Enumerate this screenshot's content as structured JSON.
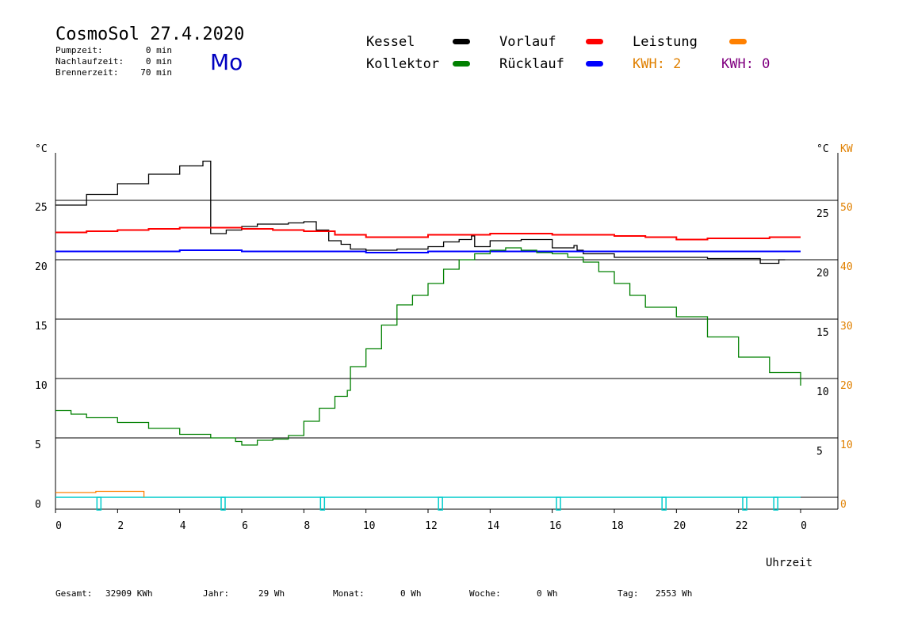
{
  "header": {
    "title": "CosmoSol 27.4.2020",
    "weekday": "Mo",
    "info_rows": [
      {
        "label": "Pumpzeit:",
        "value": "0 min"
      },
      {
        "label": "Nachlaufzeit:",
        "value": "0 min"
      },
      {
        "label": "Brennerzeit:",
        "value": "70 min"
      }
    ]
  },
  "legend": {
    "items": [
      {
        "label": "Kessel",
        "color": "#000000"
      },
      {
        "label": "Vorlauf",
        "color": "#ff0000"
      },
      {
        "label": "Leistung",
        "color": "#ff8000"
      },
      {
        "label": "Kollektor",
        "color": "#008000"
      },
      {
        "label": "Rücklauf",
        "color": "#0000ff"
      }
    ],
    "kwh_orange": "KWH: 2",
    "kwh_purple": "KWH: 0",
    "kwh_orange_color": "#e08000",
    "kwh_purple_color": "#800080"
  },
  "footer": {
    "items": [
      {
        "label": "Gesamt:",
        "value": "32909 KWh"
      },
      {
        "label": "Jahr:",
        "value": "29 Wh"
      },
      {
        "label": "Monat:",
        "value": "0 Wh"
      },
      {
        "label": "Woche:",
        "value": "0 Wh"
      },
      {
        "label": "Tag:",
        "value": "2553 Wh"
      }
    ]
  },
  "chart_data": {
    "type": "line",
    "xlabel": "Uhrzeit",
    "ylabel_left": "°C",
    "ylabel_right": "°C",
    "ylabel_right2": "KW",
    "x_ticks": [
      "0",
      "2",
      "4",
      "6",
      "8",
      "10",
      "12",
      "14",
      "16",
      "18",
      "20",
      "22",
      "0"
    ],
    "y_left_ticks": [
      "0",
      "5",
      "10",
      "15",
      "20",
      "25"
    ],
    "y_right_ticks": [
      "5",
      "10",
      "15",
      "20",
      "25"
    ],
    "y_right_kw_ticks": [
      "0",
      "10",
      "20",
      "30",
      "40",
      "50"
    ],
    "xlim": [
      0,
      24
    ],
    "ylim": [
      -1,
      29
    ],
    "grid": true,
    "series": [
      {
        "name": "Kessel",
        "color": "#000000",
        "points": [
          [
            0,
            24.6
          ],
          [
            1,
            25.5
          ],
          [
            2,
            26.4
          ],
          [
            3,
            27.2
          ],
          [
            4,
            27.9
          ],
          [
            4.75,
            28.3
          ],
          [
            4.8,
            28.3
          ],
          [
            5,
            22.2
          ],
          [
            5.5,
            22.5
          ],
          [
            6,
            22.8
          ],
          [
            6.5,
            23.0
          ],
          [
            7,
            23.0
          ],
          [
            7.5,
            23.1
          ],
          [
            8,
            23.2
          ],
          [
            8.4,
            22.5
          ],
          [
            8.8,
            21.6
          ],
          [
            9.2,
            21.3
          ],
          [
            9.5,
            20.9
          ],
          [
            10,
            20.8
          ],
          [
            11,
            20.9
          ],
          [
            12,
            21.1
          ],
          [
            12.5,
            21.5
          ],
          [
            13,
            21.7
          ],
          [
            13.4,
            22.0
          ],
          [
            13.5,
            21.1
          ],
          [
            14,
            21.6
          ],
          [
            15,
            21.7
          ],
          [
            16,
            21.0
          ],
          [
            16.7,
            21.2
          ],
          [
            16.8,
            20.8
          ],
          [
            17,
            20.5
          ],
          [
            18,
            20.2
          ],
          [
            19,
            20.2
          ],
          [
            20,
            20.2
          ],
          [
            21,
            20.1
          ],
          [
            22,
            20.1
          ],
          [
            22.7,
            19.7
          ],
          [
            23.3,
            20.0
          ],
          [
            23.5,
            20.0
          ]
        ]
      },
      {
        "name": "Vorlauf",
        "color": "#ff0000",
        "points": [
          [
            0,
            22.3
          ],
          [
            1,
            22.4
          ],
          [
            2,
            22.5
          ],
          [
            3,
            22.6
          ],
          [
            4,
            22.7
          ],
          [
            5,
            22.7
          ],
          [
            6,
            22.6
          ],
          [
            7,
            22.5
          ],
          [
            8,
            22.4
          ],
          [
            9,
            22.1
          ],
          [
            10,
            21.9
          ],
          [
            11,
            21.9
          ],
          [
            12,
            22.1
          ],
          [
            13,
            22.1
          ],
          [
            14,
            22.2
          ],
          [
            15,
            22.2
          ],
          [
            16,
            22.1
          ],
          [
            17,
            22.1
          ],
          [
            18,
            22.0
          ],
          [
            19,
            21.9
          ],
          [
            20,
            21.7
          ],
          [
            21,
            21.8
          ],
          [
            22,
            21.8
          ],
          [
            23,
            21.9
          ],
          [
            24,
            21.9
          ]
        ]
      },
      {
        "name": "Rücklauf",
        "color": "#0000ff",
        "points": [
          [
            0,
            20.7
          ],
          [
            2,
            20.7
          ],
          [
            4,
            20.8
          ],
          [
            6,
            20.7
          ],
          [
            8,
            20.7
          ],
          [
            10,
            20.6
          ],
          [
            12,
            20.7
          ],
          [
            14,
            20.7
          ],
          [
            16,
            20.7
          ],
          [
            18,
            20.7
          ],
          [
            20,
            20.7
          ],
          [
            22,
            20.7
          ],
          [
            24,
            20.7
          ]
        ]
      },
      {
        "name": "Kollektor",
        "color": "#008000",
        "points": [
          [
            0,
            7.3
          ],
          [
            0.5,
            7.0
          ],
          [
            1,
            6.7
          ],
          [
            2,
            6.3
          ],
          [
            3,
            5.8
          ],
          [
            4,
            5.3
          ],
          [
            5,
            5.0
          ],
          [
            5.8,
            4.7
          ],
          [
            6,
            4.4
          ],
          [
            6.5,
            4.8
          ],
          [
            7,
            4.9
          ],
          [
            7.5,
            5.2
          ],
          [
            8,
            6.4
          ],
          [
            8.5,
            7.5
          ],
          [
            9,
            8.5
          ],
          [
            9.4,
            9.0
          ],
          [
            9.5,
            11.0
          ],
          [
            10,
            12.5
          ],
          [
            10.5,
            14.5
          ],
          [
            11,
            16.2
          ],
          [
            11.5,
            17.0
          ],
          [
            12,
            18.0
          ],
          [
            12.5,
            19.2
          ],
          [
            13,
            20.0
          ],
          [
            13.5,
            20.5
          ],
          [
            14,
            20.8
          ],
          [
            14.5,
            21.0
          ],
          [
            15,
            20.8
          ],
          [
            15.5,
            20.6
          ],
          [
            16,
            20.5
          ],
          [
            16.5,
            20.2
          ],
          [
            17,
            19.8
          ],
          [
            17.5,
            19.0
          ],
          [
            18,
            18.0
          ],
          [
            18.5,
            17.0
          ],
          [
            19,
            16.0
          ],
          [
            20,
            15.2
          ],
          [
            21,
            13.5
          ],
          [
            22,
            11.8
          ],
          [
            23,
            10.5
          ],
          [
            24,
            9.4
          ]
        ]
      },
      {
        "name": "Leistung",
        "color": "#ff8000",
        "points": [
          [
            0,
            0.4
          ],
          [
            1.2,
            0.4
          ],
          [
            1.3,
            0.5
          ],
          [
            2,
            0.5
          ],
          [
            2.8,
            0.5
          ],
          [
            2.85,
            0.0
          ]
        ]
      }
    ],
    "pump_pulses": [
      1.4,
      5.4,
      8.6,
      12.4,
      16.2,
      19.6,
      22.2,
      23.2
    ],
    "pump_color": "#00cccc"
  }
}
